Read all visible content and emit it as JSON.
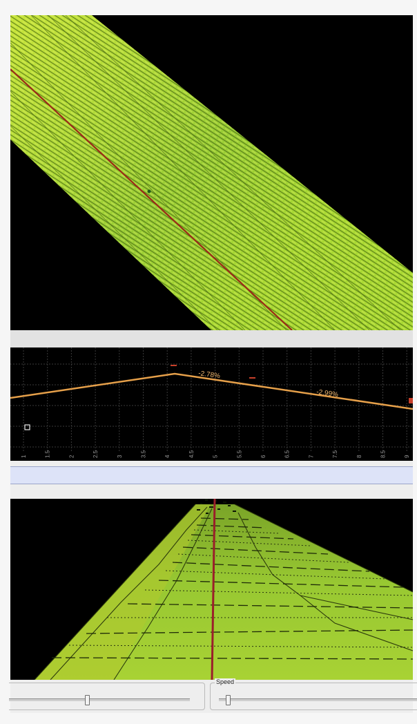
{
  "profile": {
    "grade_labels": [
      "-2.78%",
      "-2.99%"
    ],
    "tick_labels": [
      "1",
      "1.5",
      "2",
      "2.5",
      "3",
      "3.5",
      "4",
      "4.5",
      "5",
      "5.5",
      "6",
      "6.5",
      "7",
      "7.5",
      "8",
      "8.5",
      "9"
    ]
  },
  "toolbar": {
    "speed_label": "Speed"
  },
  "colors": {
    "road_green": "#a8d832",
    "centerline": "#9a2a18",
    "profile_line": "#e6a04a",
    "grid": "#3a3a3a"
  }
}
